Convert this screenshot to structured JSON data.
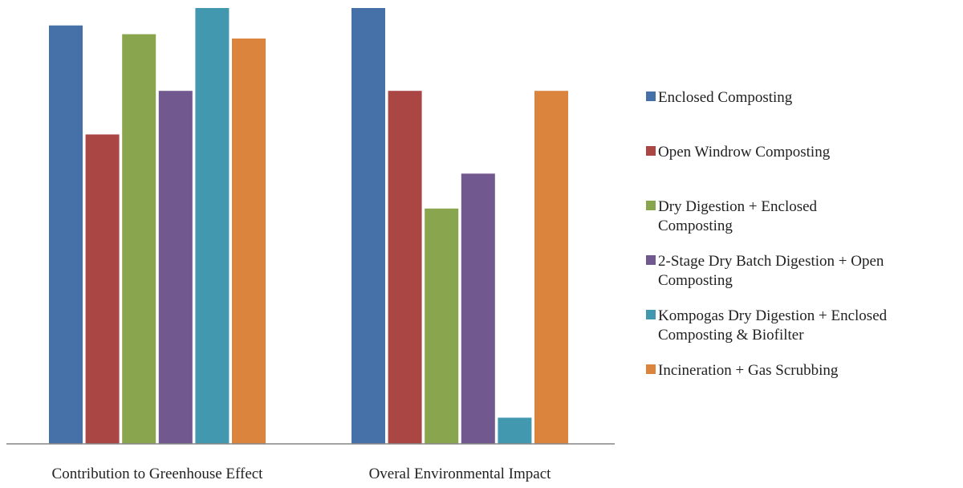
{
  "chart_data": {
    "type": "bar",
    "categories": [
      "Contribution to Greenhouse Effect",
      "Overal Environmental Impact"
    ],
    "series": [
      {
        "name": "Enclosed Composting",
        "legend_lines": [
          "Enclosed Composting"
        ],
        "color": "#4571A8",
        "values": [
          96,
          100
        ]
      },
      {
        "name": "Open Windrow Composting",
        "legend_lines": [
          "Open Windrow Composting"
        ],
        "color": "#AA4644",
        "values": [
          71,
          81
        ]
      },
      {
        "name": "Dry Digestion + Enclosed Composting",
        "legend_lines": [
          "Dry Digestion + Enclosed",
          "Composting"
        ],
        "color": "#89A54E",
        "values": [
          94,
          54
        ]
      },
      {
        "name": "2-Stage Dry Batch Digestion + Open Composting",
        "legend_lines": [
          "2-Stage Dry Batch Digestion + Open",
          "Composting"
        ],
        "color": "#71588F",
        "values": [
          81,
          62
        ]
      },
      {
        "name": "Kompogas Dry Digestion + Enclosed Composting & Biofilter",
        "legend_lines": [
          "Kompogas Dry Digestion + Enclosed",
          "Composting & Biofilter"
        ],
        "color": "#4198AF",
        "values": [
          100,
          6
        ]
      },
      {
        "name": "Incineration + Gas Scrubbing",
        "legend_lines": [
          "Incineration + Gas Scrubbing"
        ],
        "color": "#DB843D",
        "values": [
          93,
          81
        ]
      }
    ],
    "ylim": [
      0,
      100
    ],
    "grid": false,
    "legend_position": "right",
    "axis_color": "#868686"
  }
}
